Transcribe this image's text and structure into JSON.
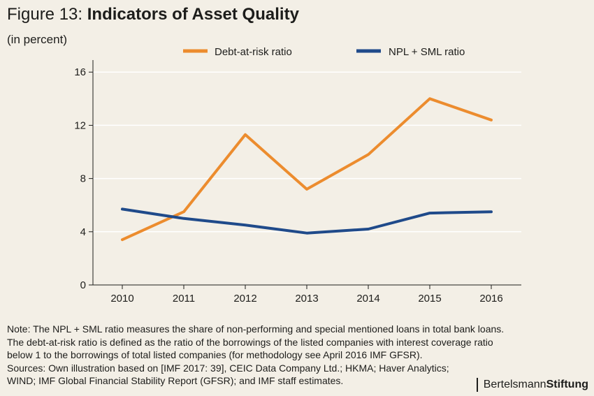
{
  "title": {
    "prefix": "Figure 13: ",
    "main": "Indicators of Asset Quality"
  },
  "subtitle": "(in percent)",
  "colors": {
    "background": "#f3efe6",
    "debt_at_risk": "#ec8c2e",
    "npl_sml": "#1f4a8a",
    "grid": "#ffffff",
    "axis": "#1d1d1b"
  },
  "chart_data": {
    "type": "line",
    "x": [
      "2010",
      "2011",
      "2012",
      "2013",
      "2014",
      "2015",
      "2016"
    ],
    "series": [
      {
        "name": "Debt-at-risk ratio",
        "color": "#ec8c2e",
        "values": [
          3.4,
          5.5,
          11.3,
          7.2,
          9.8,
          14.0,
          12.4
        ]
      },
      {
        "name": "NPL + SML ratio",
        "color": "#1f4a8a",
        "values": [
          5.7,
          5.0,
          4.5,
          3.9,
          4.2,
          5.4,
          5.5
        ]
      }
    ],
    "yticks": [
      0,
      4,
      8,
      12,
      16
    ],
    "ylim": [
      0,
      16.8
    ],
    "grid": true,
    "legend_position": "top"
  },
  "notes": [
    "Note: The NPL + SML ratio measures the share of non-performing and special mentioned loans in total bank loans.",
    "The debt-at-risk ratio is defined as the ratio of the borrowings of the listed companies with interest coverage ratio",
    "below 1 to the borrowings of total listed companies (for methodology see April 2016 IMF GFSR).",
    "Sources: Own illustration based on [IMF 2017: 39], CEIC Data Company Ltd.; HKMA; Haver Analytics;",
    "WIND; IMF Global Financial Stability Report (GFSR); and IMF staff estimates."
  ],
  "brand": {
    "part1": "Bertelsmann",
    "part2": "Stiftung"
  }
}
